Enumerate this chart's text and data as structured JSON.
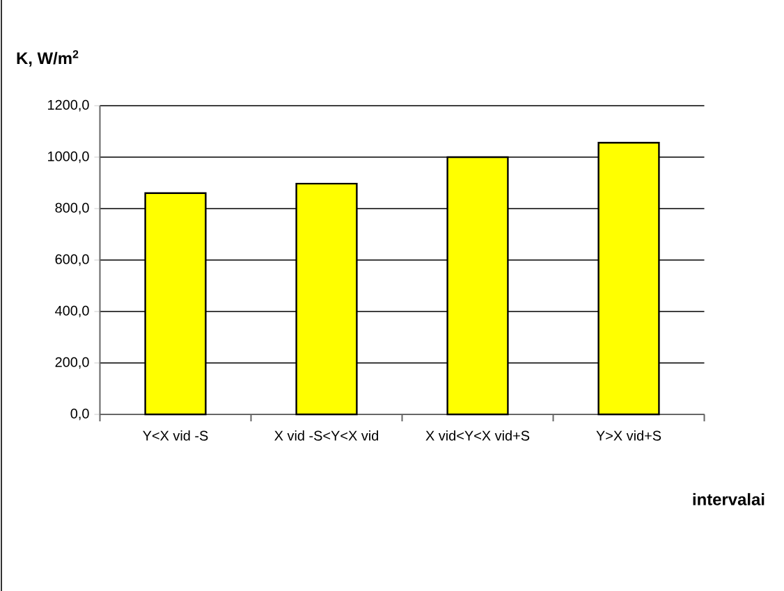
{
  "chart_data": {
    "type": "bar",
    "ylabel": "K, W/m$^{2}$",
    "xlabel": "intervalai",
    "categories": [
      "Y<X vid -S",
      "X vid -S<Y<X vid",
      "X vid<Y<X vid+S",
      "Y>X vid+S"
    ],
    "values": [
      860,
      897,
      1000,
      1056
    ],
    "color": "#ffff00",
    "ylim": [
      0,
      1200
    ],
    "yticks": [
      {
        "value": 0,
        "label": "0,0"
      },
      {
        "value": 200,
        "label": "200,0"
      },
      {
        "value": 400,
        "label": "400,0"
      },
      {
        "value": 600,
        "label": "600,0"
      },
      {
        "value": 800,
        "label": "800,0"
      },
      {
        "value": 1000,
        "label": "1000,0"
      },
      {
        "value": 1200,
        "label": "1200,0"
      }
    ],
    "grid": "y"
  }
}
